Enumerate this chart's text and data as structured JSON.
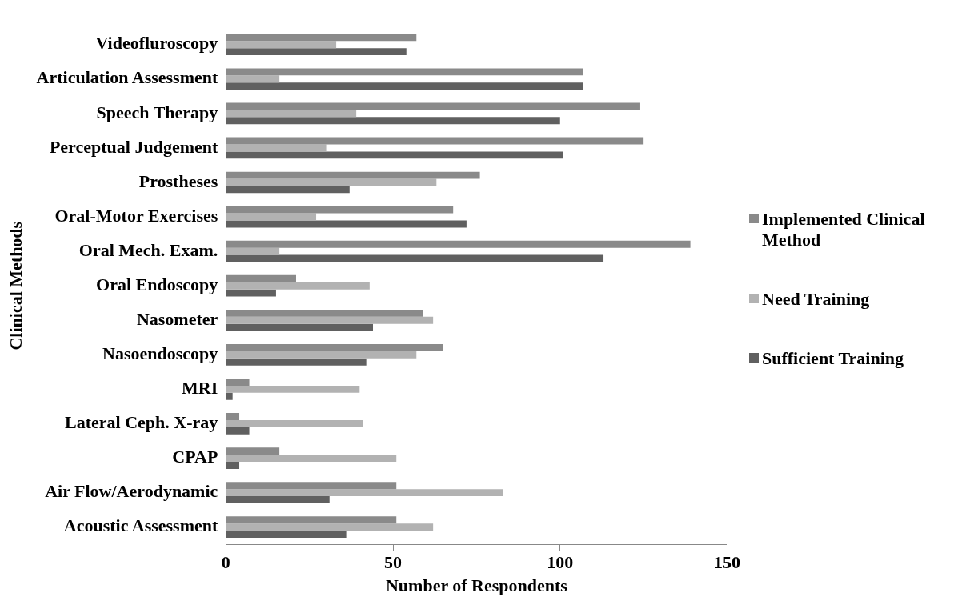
{
  "chart_data": {
    "type": "bar",
    "orientation": "horizontal",
    "xlabel": "Number of Respondents",
    "ylabel": "Clinical Methods",
    "categories": [
      "Videofluroscopy",
      "Articulation Assessment",
      "Speech Therapy",
      "Perceptual Judgement",
      "Prostheses",
      "Oral-Motor Exercises",
      "Oral Mech. Exam.",
      "Oral Endoscopy",
      "Nasometer",
      "Nasoendoscopy",
      "MRI",
      "Lateral Ceph. X-ray",
      "CPAP",
      "Air Flow/Aerodynamic",
      "Acoustic Assessment"
    ],
    "series": [
      {
        "name": "Implemented Clinical Method",
        "color": "#8a8a8a",
        "values": [
          57,
          107,
          124,
          125,
          76,
          68,
          139,
          21,
          59,
          65,
          7,
          4,
          16,
          51,
          51
        ]
      },
      {
        "name": "Need Training",
        "color": "#b2b2b2",
        "values": [
          33,
          16,
          39,
          30,
          63,
          27,
          16,
          43,
          62,
          57,
          40,
          41,
          51,
          83,
          62
        ]
      },
      {
        "name": "Sufficient Training",
        "color": "#606060",
        "values": [
          54,
          107,
          100,
          101,
          37,
          72,
          113,
          15,
          44,
          42,
          2,
          7,
          4,
          31,
          36
        ]
      }
    ],
    "xlim": [
      0,
      150
    ],
    "xticks": [
      0,
      50,
      100,
      150
    ],
    "grid": false,
    "legend": "right"
  }
}
